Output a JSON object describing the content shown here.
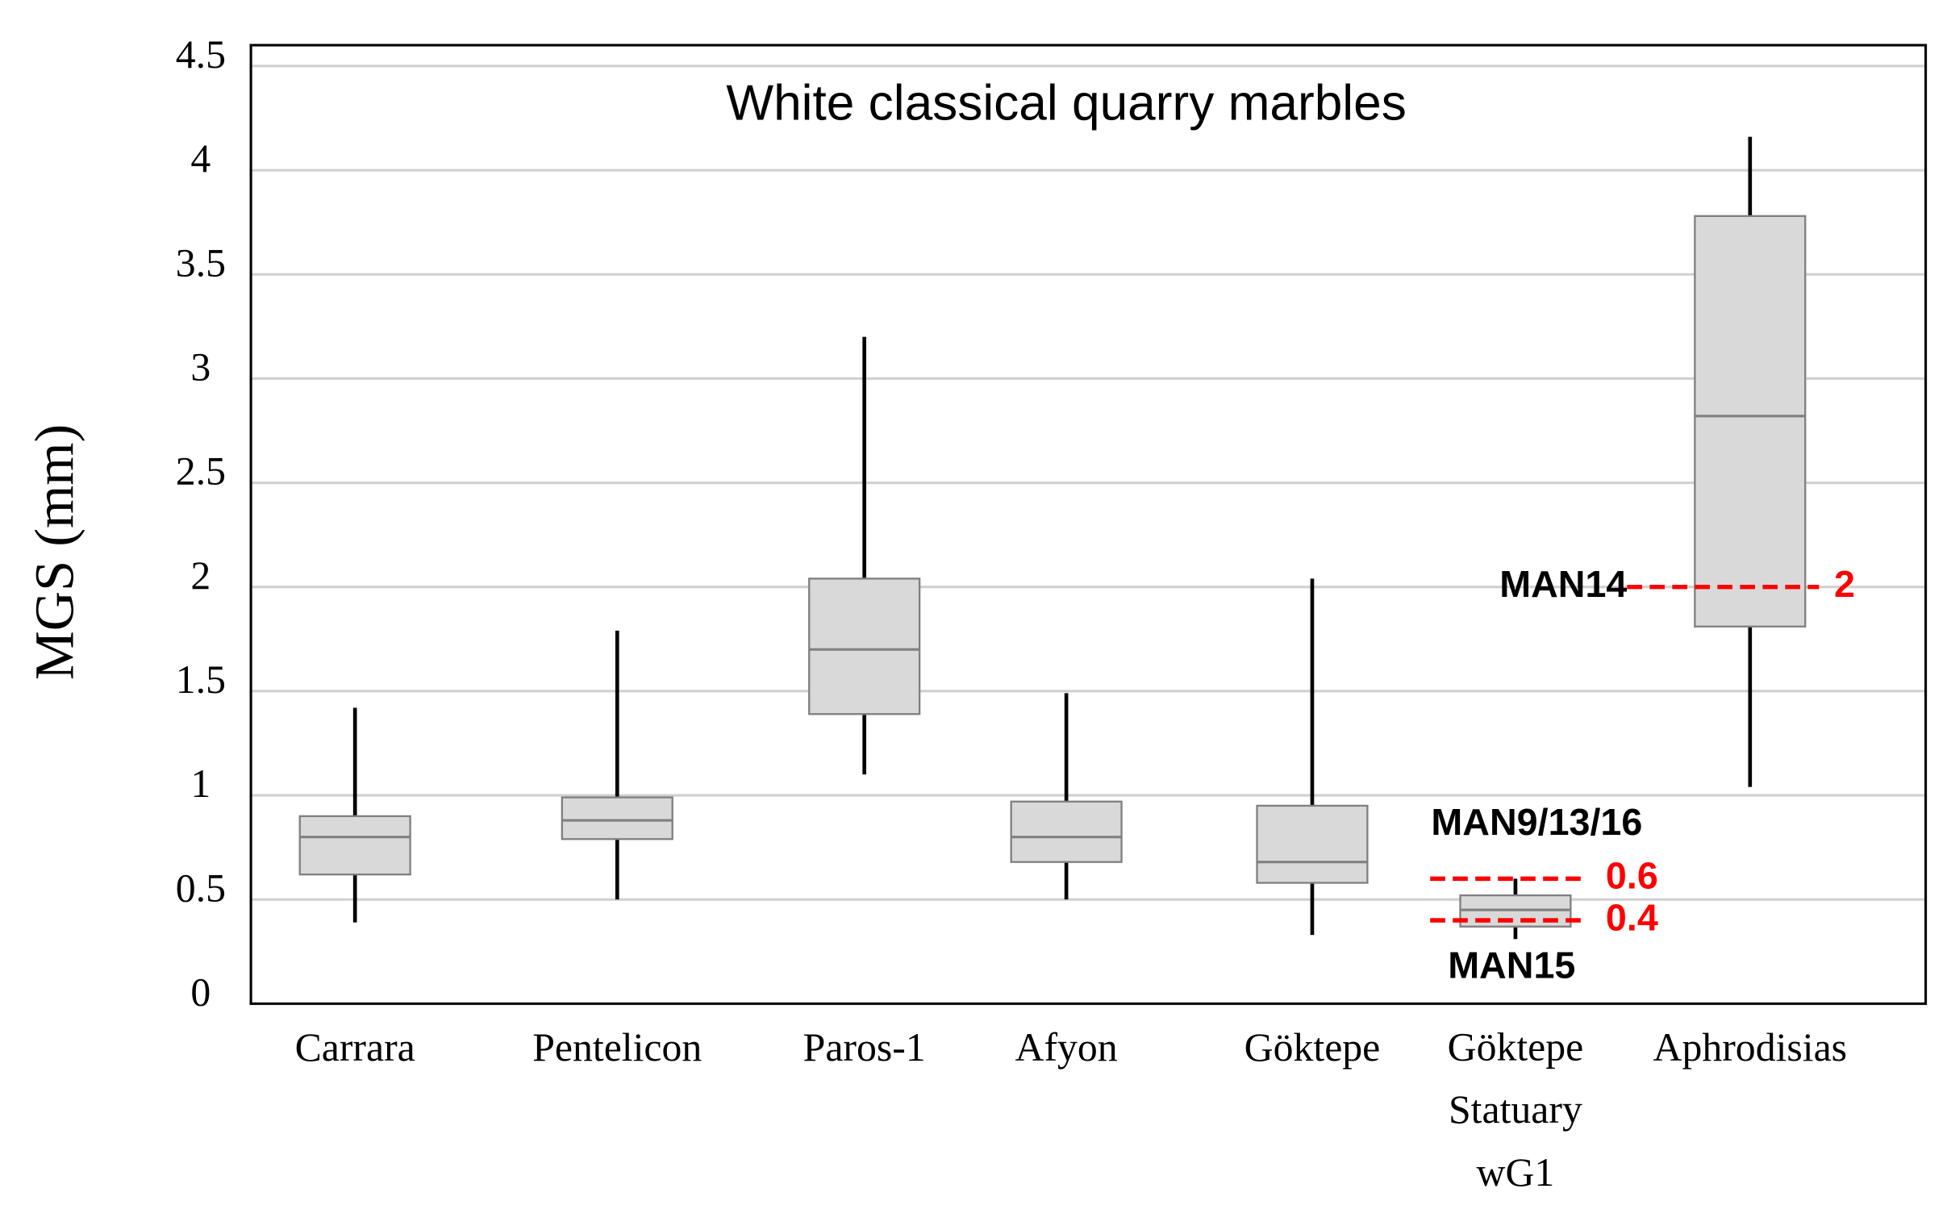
{
  "chart_data": {
    "type": "box",
    "title": "White classical quarry marbles",
    "ylabel": "MGS (mm)",
    "categories": [
      "Carrara",
      "Pentelicon",
      "Paros-1",
      "Afyon",
      "Göktepe",
      "Göktepe\nStatuary\nwG1",
      "Aphrodisias"
    ],
    "boxes": [
      {
        "low": 0.39,
        "q1": 0.62,
        "median": 0.8,
        "q3": 0.9,
        "high": 1.42
      },
      {
        "low": 0.5,
        "q1": 0.79,
        "median": 0.88,
        "q3": 0.99,
        "high": 1.79
      },
      {
        "low": 1.1,
        "q1": 1.39,
        "median": 1.7,
        "q3": 2.04,
        "high": 3.2
      },
      {
        "low": 0.5,
        "q1": 0.68,
        "median": 0.8,
        "q3": 0.97,
        "high": 1.49
      },
      {
        "low": 0.33,
        "q1": 0.58,
        "median": 0.68,
        "q3": 0.95,
        "high": 2.04
      },
      {
        "low": 0.31,
        "q1": 0.37,
        "median": 0.45,
        "q3": 0.52,
        "high": 0.6
      },
      {
        "low": 1.04,
        "q1": 1.81,
        "median": 2.82,
        "q3": 3.78,
        "high": 4.16
      }
    ],
    "color": "#d9d9d9",
    "ylim": [
      0,
      4.6
    ],
    "yticks": [
      0,
      0.5,
      1,
      1.5,
      2,
      2.5,
      3,
      3.5,
      4,
      4.5
    ],
    "grid": true,
    "annotations": [
      {
        "text": "MAN14",
        "value": 2,
        "color": "#ff0000"
      },
      {
        "text": "MAN9/13/16",
        "value": 0.6,
        "color": "#ff0000"
      },
      {
        "text": "MAN15",
        "value": 0.4,
        "color": "#ff0000"
      }
    ]
  }
}
